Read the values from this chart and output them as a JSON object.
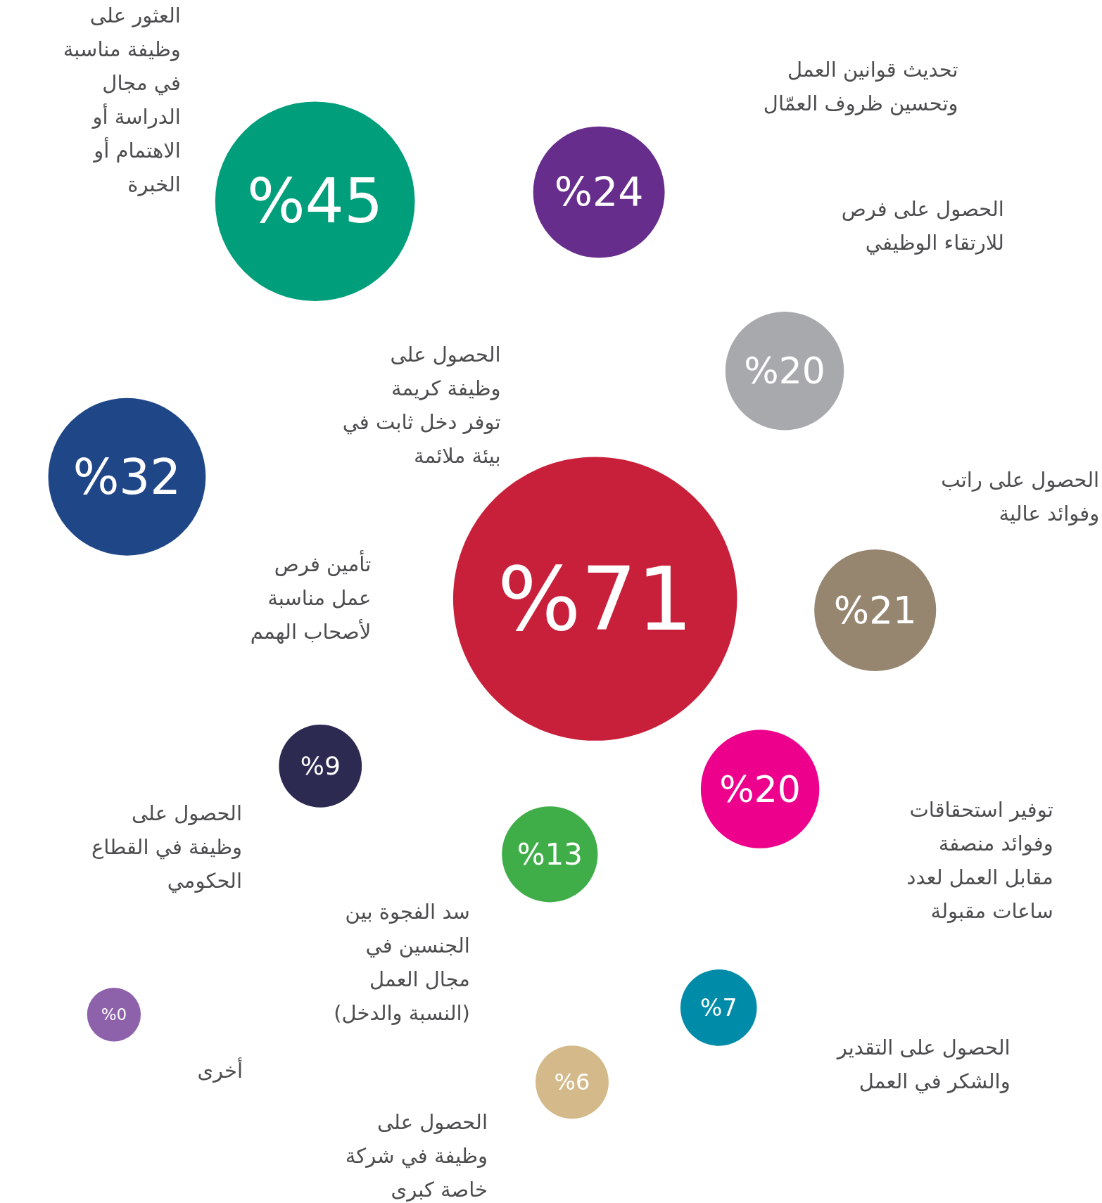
{
  "chart_data": {
    "type": "other",
    "categories": [
      "العثور على\nوظيفة مناسبة\nفي مجال\nالدراسة أو\nالاهتمام أو\nالخبرة",
      "تحديث قوانين العمل\nوتحسين ظروف العمّال",
      "الحصول على فرص\nللارتقاء الوظيفي",
      "الحصول على\nوظيفة كريمة\nتوفر دخل ثابت في\nبيئة ملائمة",
      "تأمين فرص\nعمل مناسبة\nلأصحاب الهمم",
      "الحصول على راتب\nوفوائد عالية",
      "توفير استحقاقات\nوفوائد منصفة\nمقابل العمل لعدد\nساعات مقبولة",
      "الحصول على\nوظيفة في القطاع\nالحكومي",
      "سد الفجوة بين\nالجنسين في\nمجال العمل\n(النسبة والدخل)",
      "الحصول على التقدير\nوالشكر في العمل",
      "الحصول على\nوظيفة في شركة\nخاصة كبرى",
      "أخرى"
    ],
    "values": [
      45,
      24,
      20,
      71,
      32,
      21,
      20,
      9,
      13,
      7,
      6,
      0
    ],
    "value_labels": [
      "%45",
      "%24",
      "%20",
      "%71",
      "%32",
      "%21",
      "%20",
      "%9",
      "%13",
      "%7",
      "%6",
      "%0"
    ],
    "colors": [
      "#009e7a",
      "#662d8c",
      "#a7a9ac",
      "#c8203a",
      "#1f4788",
      "#968670",
      "#ec008c",
      "#2d2a52",
      "#3fae49",
      "#008ca8",
      "#d4b98a",
      "#8e62ab"
    ]
  }
}
